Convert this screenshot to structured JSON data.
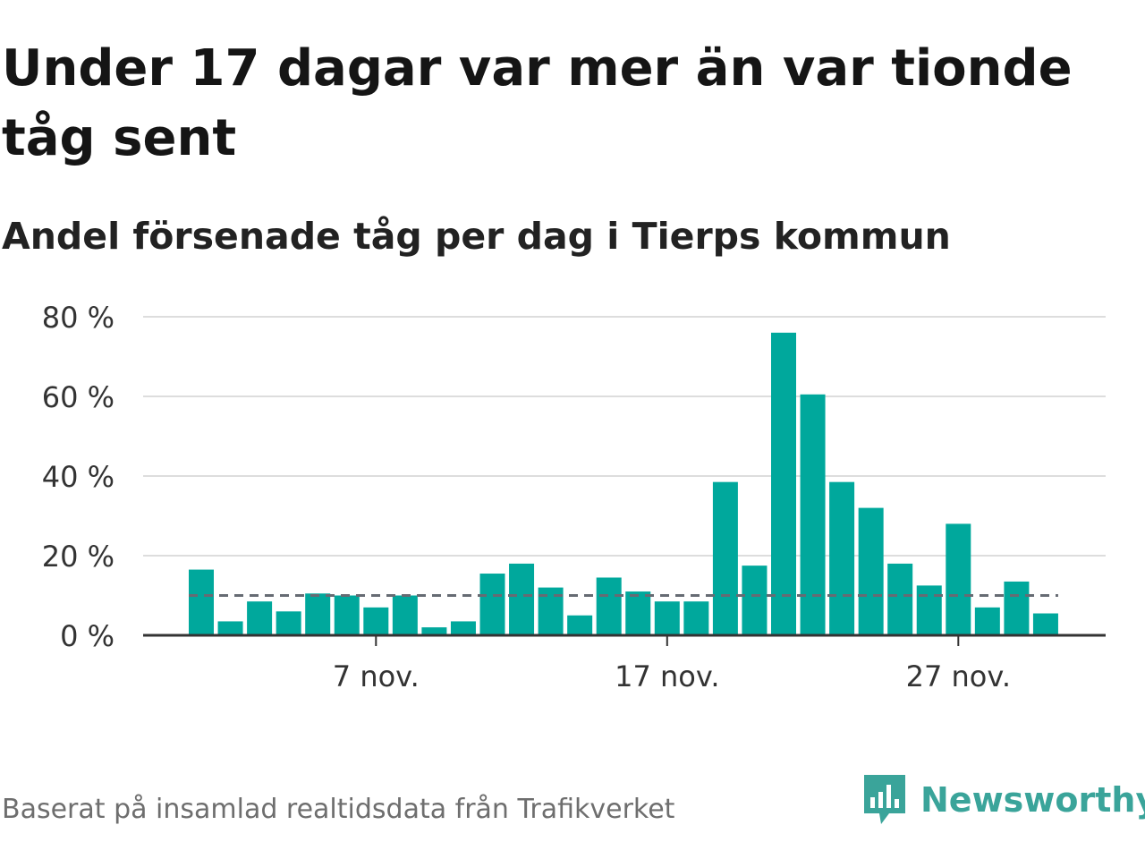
{
  "title": "Under 17 dagar var mer än var tionde tåg sent",
  "subtitle": "Andel försenade tåg per dag i Tierps kommun",
  "footer": {
    "source": "Baserat på insamlad realtidsdata från Trafikverket",
    "brand": "Newsworthy"
  },
  "colors": {
    "bar": "#00a89c",
    "reference": "#666b73",
    "grid": "#dddddd",
    "brand": "#3aa49a"
  },
  "chart_data": {
    "type": "bar",
    "x": [
      1,
      2,
      3,
      4,
      5,
      6,
      7,
      8,
      9,
      10,
      11,
      12,
      13,
      14,
      15,
      16,
      17,
      18,
      19,
      20,
      21,
      22,
      23,
      24,
      25,
      26,
      27,
      28,
      29,
      30
    ],
    "values": [
      16.5,
      3.5,
      8.5,
      6,
      10.5,
      10,
      7,
      10,
      2,
      3.5,
      15.5,
      18,
      12,
      5,
      14.5,
      11,
      8.5,
      8.5,
      38.5,
      17.5,
      76,
      60.5,
      38.5,
      32,
      18,
      12.5,
      28,
      7,
      13.5,
      5.5
    ],
    "reference_line": 10,
    "ylim": [
      0,
      80
    ],
    "yticks": [
      0,
      20,
      40,
      60,
      80
    ],
    "ytick_labels": [
      "0 %",
      "20 %",
      "40 %",
      "60 %",
      "80 %"
    ],
    "xticks": [
      7,
      17,
      27
    ],
    "xtick_labels": [
      "7 nov.",
      "17 nov.",
      "27 nov."
    ],
    "grid": true
  }
}
